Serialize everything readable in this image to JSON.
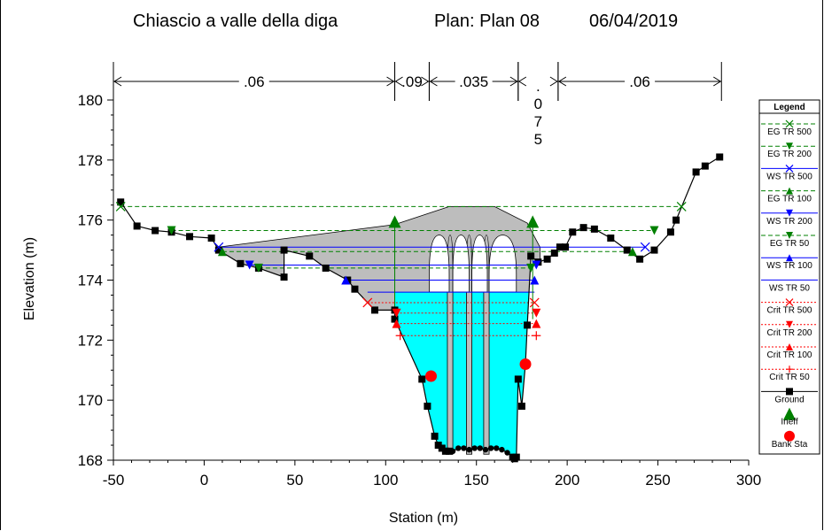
{
  "title": {
    "river": "Chiascio a valle della diga",
    "plan": "Plan: Plan 08",
    "date": "06/04/2019"
  },
  "chart_data": {
    "type": "line",
    "xlabel": "Station (m)",
    "ylabel": "Elevation (m)",
    "xlim": [
      -50,
      300
    ],
    "ylim": [
      168,
      180
    ],
    "xticks": [
      -50,
      0,
      50,
      100,
      150,
      200,
      250,
      300
    ],
    "xtick_labels": [
      "-50",
      "0",
      "50",
      "100",
      "150",
      "200",
      "250",
      "300"
    ],
    "yticks": [
      168,
      170,
      172,
      174,
      176,
      178,
      180
    ],
    "ytick_labels": [
      "168",
      "170",
      "172",
      "174",
      "176",
      "178",
      "180"
    ],
    "manning_n": [
      {
        "label": ".06",
        "from": -50,
        "to": 105
      },
      {
        "label": ".09",
        "from": 105,
        "to": 124
      },
      {
        "label": ".035",
        "from": 124,
        "to": 173
      },
      {
        "label": ".075",
        "from": 173,
        "to": 195,
        "vertical": true
      },
      {
        "label": ".06",
        "from": 195,
        "to": 285
      }
    ],
    "ground": {
      "name": "Ground",
      "x": [
        -46,
        -37,
        -27,
        -18,
        -8,
        4,
        8,
        20,
        30,
        44,
        44,
        58,
        67,
        79,
        83,
        94,
        105,
        105,
        120,
        123,
        127,
        129,
        131,
        133,
        135,
        137,
        140,
        143,
        146,
        149,
        152,
        155,
        158,
        161,
        164,
        167,
        170,
        171,
        172,
        173,
        175,
        177,
        178,
        180,
        184,
        189,
        193,
        196,
        199,
        203,
        209,
        215,
        224,
        233,
        240,
        248,
        257,
        260,
        271,
        276,
        284
      ],
      "y": [
        176.6,
        175.8,
        175.65,
        175.6,
        175.45,
        175.4,
        175.0,
        174.55,
        174.4,
        174.1,
        175.0,
        174.8,
        174.4,
        174.0,
        173.7,
        173.0,
        173.0,
        172.7,
        170.7,
        169.8,
        168.8,
        168.5,
        168.4,
        168.3,
        168.3,
        168.3,
        168.4,
        168.4,
        168.35,
        168.4,
        168.4,
        168.35,
        168.4,
        168.4,
        168.35,
        168.25,
        168.1,
        168.05,
        168.1,
        170.7,
        169.8,
        171.2,
        172.5,
        174.8,
        174.6,
        174.7,
        174.9,
        175.1,
        175.1,
        175.6,
        175.75,
        175.7,
        175.4,
        175.0,
        174.7,
        175.0,
        175.6,
        176.0,
        177.6,
        177.8,
        178.1
      ]
    },
    "obstruction": {
      "name": "Ineffective / obstruction",
      "top": 176.45,
      "piers": [
        135,
        146,
        160,
        172
      ],
      "pier_top": 175.5
    },
    "water_fill_elevation": 173.6,
    "profiles": [
      {
        "name": "EG TR 500",
        "elevation": 176.45,
        "x_from": -46,
        "x_to": 263,
        "color": "#008000",
        "style": "dashed",
        "marker": "x"
      },
      {
        "name": "EG TR 200",
        "elevation": 175.65,
        "x_from": -18,
        "x_to": 248,
        "color": "#008000",
        "style": "dashed",
        "marker": "tri-down"
      },
      {
        "name": "WS TR 500",
        "elevation": 175.1,
        "x_from": 8,
        "x_to": 243,
        "color": "#0000ff",
        "style": "solid",
        "marker": "x"
      },
      {
        "name": "EG TR 100",
        "elevation": 174.95,
        "x_from": 10,
        "x_to": 236,
        "color": "#008000",
        "style": "dashed",
        "marker": "tri-up"
      },
      {
        "name": "WS TR 200",
        "elevation": 174.5,
        "x_from": 25,
        "x_to": 183,
        "color": "#0000ff",
        "style": "solid",
        "marker": "tri-down"
      },
      {
        "name": "EG TR 50",
        "elevation": 174.4,
        "x_from": 30,
        "x_to": 180,
        "color": "#008000",
        "style": "dashed",
        "marker": "tri-down"
      },
      {
        "name": "WS TR 100",
        "elevation": 174.0,
        "x_from": 78,
        "x_to": 182,
        "color": "#0000ff",
        "style": "solid",
        "marker": "tri-up"
      },
      {
        "name": "WS TR 50",
        "elevation": 173.6,
        "x_from": 90,
        "x_to": 182,
        "color": "#0000ff",
        "style": "solid",
        "marker": "none"
      },
      {
        "name": "Crit TR 500",
        "elevation": 173.25,
        "x_from": 90,
        "x_to": 182,
        "color": "#ff0000",
        "style": "dotted",
        "marker": "x"
      },
      {
        "name": "Crit TR 200",
        "elevation": 172.9,
        "x_from": 106,
        "x_to": 183,
        "color": "#ff0000",
        "style": "dotted",
        "marker": "tri-down"
      },
      {
        "name": "Crit TR 100",
        "elevation": 172.55,
        "x_from": 106,
        "x_to": 183,
        "color": "#ff0000",
        "style": "dotted",
        "marker": "tri-up"
      },
      {
        "name": "Crit TR 50",
        "elevation": 172.15,
        "x_from": 108,
        "x_to": 183,
        "color": "#ff0000",
        "style": "dotted",
        "marker": "plus"
      }
    ],
    "ineff": {
      "name": "Ineff",
      "points": [
        [
          105,
          175.95
        ],
        [
          181,
          175.95
        ]
      ],
      "color": "#008000"
    },
    "bank_sta": {
      "name": "Bank Sta",
      "points": [
        [
          125,
          170.8
        ],
        [
          177,
          171.2
        ]
      ],
      "color": "#ff0000"
    },
    "legend": {
      "title": "Legend",
      "placement": "right",
      "entries": [
        "EG TR 500",
        "EG TR 200",
        "WS TR 500",
        "EG TR 100",
        "WS TR 200",
        "EG TR 50",
        "WS TR 100",
        "WS TR 50",
        "Crit TR 500",
        "Crit TR 200",
        "Crit TR 100",
        "Crit TR 50",
        "Ground",
        "Ineff",
        "Bank Sta"
      ]
    },
    "grid": false
  }
}
